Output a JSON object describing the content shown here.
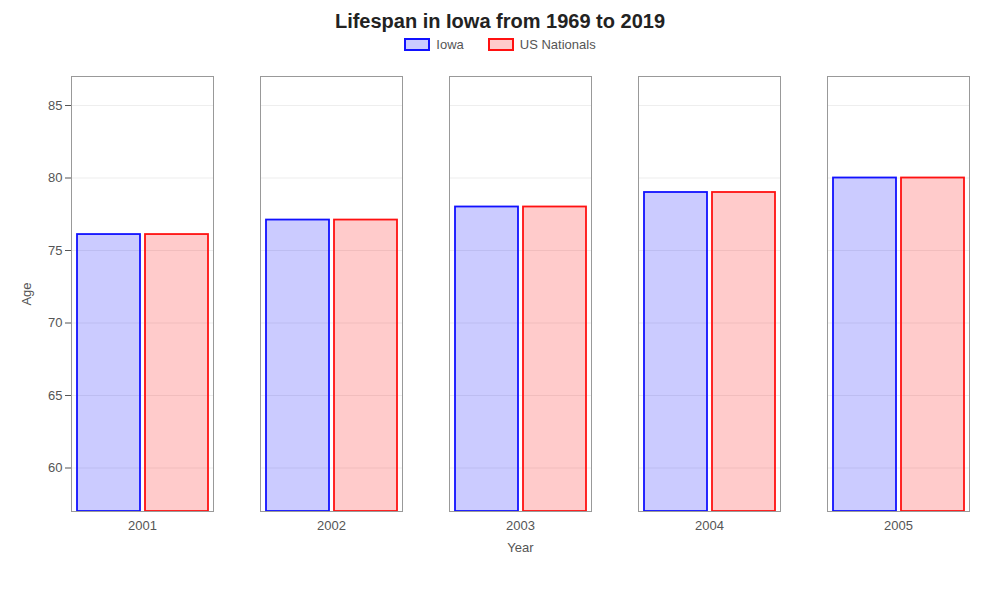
{
  "chart_data": {
    "type": "bar",
    "title": "Lifespan in Iowa from 1969 to 2019",
    "xlabel": "Year",
    "ylabel": "Age",
    "categories": [
      "2001",
      "2002",
      "2003",
      "2004",
      "2005"
    ],
    "series": [
      {
        "name": "Iowa",
        "color": "#1111ff",
        "values": [
          76.1,
          77.1,
          78.0,
          79.0,
          80.0
        ]
      },
      {
        "name": "US Nationals",
        "color": "#ff1111",
        "values": [
          76.1,
          77.1,
          78.0,
          79.0,
          80.0
        ]
      }
    ],
    "ylim": [
      57,
      87
    ],
    "yticks": [
      60,
      65,
      70,
      75,
      80,
      85
    ],
    "grid": true,
    "legend": "top"
  }
}
